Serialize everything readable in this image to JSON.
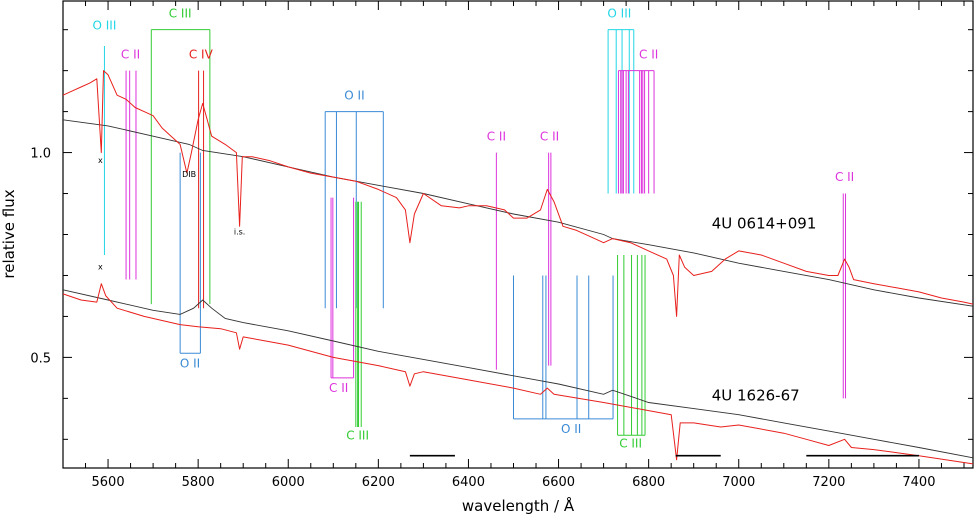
{
  "chart_data": {
    "type": "line",
    "xlabel": "wavelength / Å",
    "ylabel": "relative flux",
    "xlim": [
      5500,
      7520
    ],
    "ylim": [
      0.23,
      1.37
    ],
    "x_ticks": [
      5600,
      5800,
      6000,
      6200,
      6400,
      6600,
      6800,
      7000,
      7200,
      7400
    ],
    "y_ticks": [
      0.5,
      1.0
    ],
    "y_tick_labels": [
      "0.5",
      "1.0"
    ],
    "colors": {
      "observed": "#e8201c",
      "model": "#333333",
      "O III": "#22d6e6",
      "C II": "#dd33dd",
      "C III": "#33cc33",
      "C IV": "#e8201c",
      "O II": "#3a8ad6",
      "bar": "#000000"
    },
    "spectra": [
      {
        "name": "4U 0614+091",
        "model": [
          [
            5500,
            1.08
          ],
          [
            5600,
            1.065
          ],
          [
            5700,
            1.04
          ],
          [
            5780,
            1.02
          ],
          [
            5810,
            1.005
          ],
          [
            5900,
            0.99
          ],
          [
            6000,
            0.965
          ],
          [
            6100,
            0.94
          ],
          [
            6200,
            0.92
          ],
          [
            6300,
            0.9
          ],
          [
            6400,
            0.875
          ],
          [
            6500,
            0.85
          ],
          [
            6600,
            0.83
          ],
          [
            6700,
            0.8
          ],
          [
            6720,
            0.79
          ],
          [
            6800,
            0.775
          ],
          [
            6900,
            0.755
          ],
          [
            7000,
            0.73
          ],
          [
            7100,
            0.71
          ],
          [
            7200,
            0.69
          ],
          [
            7300,
            0.665
          ],
          [
            7400,
            0.645
          ],
          [
            7520,
            0.625
          ]
        ],
        "observed": [
          [
            5500,
            1.14
          ],
          [
            5520,
            1.15
          ],
          [
            5540,
            1.16
          ],
          [
            5560,
            1.17
          ],
          [
            5575,
            1.18
          ],
          [
            5585,
            1.0
          ],
          [
            5590,
            1.2
          ],
          [
            5600,
            1.19
          ],
          [
            5620,
            1.14
          ],
          [
            5640,
            1.13
          ],
          [
            5660,
            1.11
          ],
          [
            5680,
            1.1
          ],
          [
            5700,
            1.09
          ],
          [
            5720,
            1.06
          ],
          [
            5740,
            1.04
          ],
          [
            5760,
            1.02
          ],
          [
            5775,
            0.95
          ],
          [
            5785,
            1.0
          ],
          [
            5800,
            1.08
          ],
          [
            5810,
            1.12
          ],
          [
            5820,
            1.08
          ],
          [
            5830,
            1.04
          ],
          [
            5860,
            1.02
          ],
          [
            5885,
            1.0
          ],
          [
            5892,
            0.82
          ],
          [
            5898,
            0.99
          ],
          [
            5920,
            0.99
          ],
          [
            5960,
            0.98
          ],
          [
            6000,
            0.965
          ],
          [
            6050,
            0.95
          ],
          [
            6100,
            0.94
          ],
          [
            6150,
            0.93
          ],
          [
            6200,
            0.91
          ],
          [
            6240,
            0.89
          ],
          [
            6260,
            0.86
          ],
          [
            6270,
            0.78
          ],
          [
            6280,
            0.85
          ],
          [
            6300,
            0.9
          ],
          [
            6340,
            0.87
          ],
          [
            6380,
            0.865
          ],
          [
            6400,
            0.87
          ],
          [
            6440,
            0.87
          ],
          [
            6480,
            0.86
          ],
          [
            6500,
            0.84
          ],
          [
            6530,
            0.84
          ],
          [
            6560,
            0.86
          ],
          [
            6575,
            0.91
          ],
          [
            6590,
            0.88
          ],
          [
            6610,
            0.82
          ],
          [
            6640,
            0.81
          ],
          [
            6680,
            0.79
          ],
          [
            6700,
            0.78
          ],
          [
            6720,
            0.79
          ],
          [
            6760,
            0.78
          ],
          [
            6800,
            0.76
          ],
          [
            6840,
            0.74
          ],
          [
            6855,
            0.7
          ],
          [
            6862,
            0.6
          ],
          [
            6868,
            0.75
          ],
          [
            6880,
            0.72
          ],
          [
            6900,
            0.7
          ],
          [
            6940,
            0.71
          ],
          [
            6970,
            0.74
          ],
          [
            7000,
            0.76
          ],
          [
            7050,
            0.75
          ],
          [
            7100,
            0.73
          ],
          [
            7150,
            0.71
          ],
          [
            7200,
            0.7
          ],
          [
            7220,
            0.7
          ],
          [
            7235,
            0.74
          ],
          [
            7245,
            0.72
          ],
          [
            7255,
            0.69
          ],
          [
            7300,
            0.68
          ],
          [
            7350,
            0.67
          ],
          [
            7400,
            0.66
          ],
          [
            7450,
            0.645
          ],
          [
            7500,
            0.635
          ],
          [
            7520,
            0.63
          ]
        ]
      },
      {
        "name": "4U 1626-67",
        "model": [
          [
            5500,
            0.665
          ],
          [
            5600,
            0.64
          ],
          [
            5700,
            0.615
          ],
          [
            5760,
            0.605
          ],
          [
            5790,
            0.62
          ],
          [
            5810,
            0.64
          ],
          [
            5830,
            0.62
          ],
          [
            5860,
            0.595
          ],
          [
            5900,
            0.585
          ],
          [
            6000,
            0.565
          ],
          [
            6100,
            0.54
          ],
          [
            6200,
            0.515
          ],
          [
            6300,
            0.495
          ],
          [
            6400,
            0.475
          ],
          [
            6500,
            0.455
          ],
          [
            6600,
            0.435
          ],
          [
            6700,
            0.41
          ],
          [
            6720,
            0.42
          ],
          [
            6760,
            0.405
          ],
          [
            6800,
            0.39
          ],
          [
            6900,
            0.375
          ],
          [
            7000,
            0.36
          ],
          [
            7100,
            0.34
          ],
          [
            7200,
            0.32
          ],
          [
            7300,
            0.3
          ],
          [
            7400,
            0.28
          ],
          [
            7520,
            0.255
          ]
        ],
        "observed": [
          [
            5500,
            0.655
          ],
          [
            5540,
            0.64
          ],
          [
            5575,
            0.635
          ],
          [
            5585,
            0.68
          ],
          [
            5595,
            0.65
          ],
          [
            5620,
            0.62
          ],
          [
            5680,
            0.6
          ],
          [
            5720,
            0.59
          ],
          [
            5760,
            0.58
          ],
          [
            5800,
            0.575
          ],
          [
            5850,
            0.57
          ],
          [
            5885,
            0.56
          ],
          [
            5892,
            0.52
          ],
          [
            5900,
            0.55
          ],
          [
            5950,
            0.54
          ],
          [
            6000,
            0.53
          ],
          [
            6100,
            0.5
          ],
          [
            6200,
            0.48
          ],
          [
            6260,
            0.465
          ],
          [
            6270,
            0.43
          ],
          [
            6280,
            0.46
          ],
          [
            6300,
            0.465
          ],
          [
            6400,
            0.445
          ],
          [
            6500,
            0.425
          ],
          [
            6560,
            0.41
          ],
          [
            6575,
            0.425
          ],
          [
            6590,
            0.41
          ],
          [
            6700,
            0.39
          ],
          [
            6800,
            0.37
          ],
          [
            6850,
            0.36
          ],
          [
            6862,
            0.25
          ],
          [
            6870,
            0.34
          ],
          [
            6900,
            0.34
          ],
          [
            6960,
            0.33
          ],
          [
            7000,
            0.335
          ],
          [
            7100,
            0.315
          ],
          [
            7150,
            0.3
          ],
          [
            7200,
            0.285
          ],
          [
            7235,
            0.3
          ],
          [
            7250,
            0.28
          ],
          [
            7300,
            0.275
          ],
          [
            7400,
            0.26
          ],
          [
            7520,
            0.24
          ]
        ]
      }
    ],
    "line_markers": [
      {
        "ion": "O III",
        "waves": [
          5592
        ],
        "y": [
          0.75,
          1.26
        ],
        "label": "O III",
        "label_wave": 5592,
        "label_y": 1.3
      },
      {
        "ion": "C II",
        "waves": [
          5640,
          5648,
          5662
        ],
        "y": [
          0.69,
          1.2
        ],
        "label": "C II",
        "label_wave": 5650,
        "label_y": 1.23
      },
      {
        "ion": "C III",
        "waves": [
          5696,
          5826
        ],
        "y": [
          0.63,
          1.3
        ],
        "bracket_top": true,
        "label": "C III",
        "label_wave": 5760,
        "label_y": 1.33
      },
      {
        "ion": "C IV",
        "waves": [
          5801,
          5812
        ],
        "y": [
          0.62,
          1.2
        ],
        "label": "C IV",
        "label_wave": 5806,
        "label_y": 1.23
      },
      {
        "ion": "O II",
        "waves": [
          5760,
          5805
        ],
        "y": [
          0.51,
          1.0
        ],
        "bracket_bottom": true,
        "label": "O II",
        "label_wave": 5782,
        "label_y": 0.475
      },
      {
        "ion": "O II",
        "waves": [
          6082,
          6107,
          6151,
          6211
        ],
        "y": [
          0.62,
          1.1
        ],
        "bracket_top": true,
        "label": "O II",
        "label_wave": 6147,
        "label_y": 1.13
      },
      {
        "ion": "C II",
        "waves": [
          6095,
          6099,
          6145
        ],
        "y": [
          0.45,
          0.89
        ],
        "bracket_bottom": true,
        "label": "C II",
        "label_wave": 6112,
        "label_y": 0.415
      },
      {
        "ion": "C III",
        "waves": [
          6150,
          6154,
          6156,
          6162
        ],
        "y": [
          0.33,
          0.88
        ],
        "label": "C III",
        "label_wave": 6154,
        "label_y": 0.3
      },
      {
        "ion": "C II",
        "waves": [
          6462
        ],
        "y": [
          0.47,
          1.0
        ],
        "label": "C II",
        "label_wave": 6462,
        "label_y": 1.03
      },
      {
        "ion": "C II",
        "waves": [
          6578,
          6583
        ],
        "y": [
          0.48,
          1.0
        ],
        "label": "C II",
        "label_wave": 6580,
        "label_y": 1.03
      },
      {
        "ion": "O II",
        "waves": [
          6500,
          6565,
          6572,
          6641,
          6667,
          6721
        ],
        "y": [
          0.35,
          0.7
        ],
        "bracket_bottom": true,
        "label": "O II",
        "label_wave": 6628,
        "label_y": 0.315
      },
      {
        "ion": "O III",
        "waves": [
          6710,
          6728,
          6741,
          6757,
          6767
        ],
        "y": [
          0.9,
          1.3
        ],
        "bracket_top": true,
        "label": "O III",
        "label_wave": 6735,
        "label_y": 1.33
      },
      {
        "ion": "C II",
        "waves": [
          6733,
          6738,
          6741,
          6744,
          6750,
          6755,
          6780,
          6784,
          6787,
          6791,
          6800,
          6812
        ],
        "y": [
          0.9,
          1.2
        ],
        "bracket_top": true,
        "label": "C II",
        "label_wave": 6800,
        "label_y": 1.23
      },
      {
        "ion": "C III",
        "waves": [
          6731,
          6745,
          6762,
          6775,
          6785,
          6792
        ],
        "y": [
          0.31,
          0.75
        ],
        "bracket_bottom": true,
        "label": "C III",
        "label_wave": 6760,
        "label_y": 0.28
      },
      {
        "ion": "C II",
        "waves": [
          7232,
          7237
        ],
        "y": [
          0.4,
          0.9
        ],
        "label": "C II",
        "label_wave": 7235,
        "label_y": 0.93
      }
    ],
    "annotations": [
      {
        "text": "x",
        "wave": 5583,
        "y": 0.975
      },
      {
        "text": "DIB",
        "wave": 5780,
        "y": 0.94
      },
      {
        "text": "i.s.",
        "wave": 5892,
        "y": 0.8
      },
      {
        "text": "x",
        "wave": 5583,
        "y": 0.715
      }
    ],
    "spectrum_labels": [
      {
        "text": "4U 0614+091",
        "wave": 6940,
        "y": 0.815
      },
      {
        "text": "4U 1626-67",
        "wave": 6940,
        "y": 0.395
      }
    ],
    "bars": [
      {
        "x": [
          6270,
          6370
        ],
        "y": 0.26
      },
      {
        "x": [
          6860,
          6960
        ],
        "y": 0.26
      },
      {
        "x": [
          7150,
          7400
        ],
        "y": 0.26
      }
    ]
  }
}
